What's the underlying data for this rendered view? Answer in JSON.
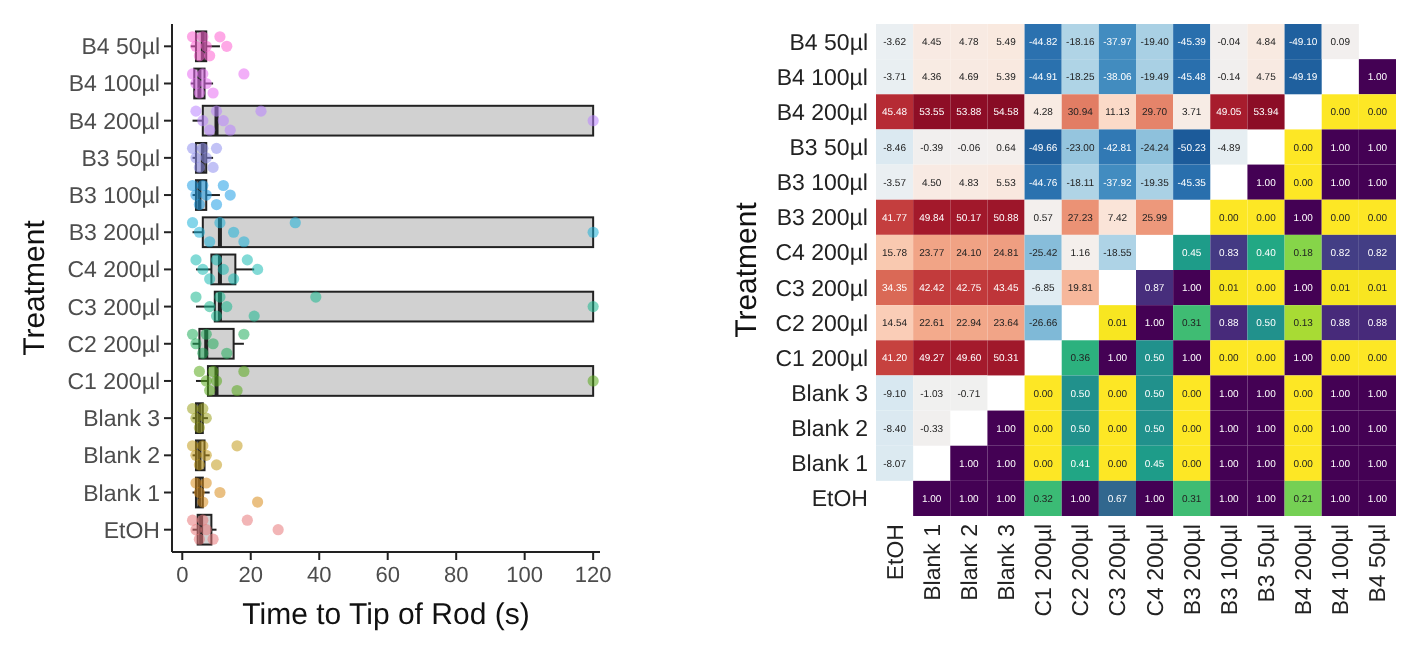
{
  "chart_data": [
    {
      "type": "box",
      "orientation": "horizontal",
      "xlabel": "Time to Tip of Rod (s)",
      "ylabel": "Treatment",
      "marker": "circle",
      "categories": [
        "B4 50µl",
        "B4 100µl",
        "B4 200µl",
        "B3 50µl",
        "B3 100µl",
        "B3 200µl",
        "C4 200µl",
        "C3 200µl",
        "C2 200µl",
        "C1 200µl",
        "Blank 3",
        "Blank 2",
        "Blank 1",
        "EtOH"
      ],
      "xlim": [
        -3,
        122
      ],
      "xticks": [
        0,
        20,
        40,
        60,
        80,
        100,
        120
      ],
      "series": [
        {
          "type": "box",
          "color": "#cccccc",
          "boxes": [
            {
              "low": 2.5,
              "q1": 4,
              "median": 6,
              "q3": 7,
              "high": 11
            },
            {
              "low": 2.5,
              "q1": 3.5,
              "median": 5,
              "q3": 6.5,
              "high": 9
            },
            {
              "low": 3,
              "q1": 6,
              "median": 10,
              "q3": 120,
              "high": 120
            },
            {
              "low": 3,
              "q1": 4,
              "median": 6,
              "q3": 7,
              "high": 9
            },
            {
              "low": 3,
              "q1": 4,
              "median": 5,
              "q3": 7,
              "high": 11
            },
            {
              "low": 3,
              "q1": 6,
              "median": 11,
              "q3": 120,
              "high": 120
            },
            {
              "low": 4,
              "q1": 8.5,
              "median": 11,
              "q3": 15.5,
              "high": 21
            },
            {
              "low": 4,
              "q1": 9.5,
              "median": 11,
              "q3": 120,
              "high": 120
            },
            {
              "low": 3,
              "q1": 5,
              "median": 7,
              "q3": 15,
              "high": 18
            },
            {
              "low": 4,
              "q1": 7.5,
              "median": 10,
              "q3": 120,
              "high": 120
            },
            {
              "low": 3,
              "q1": 4,
              "median": 5,
              "q3": 6,
              "high": 7.5
            },
            {
              "low": 3,
              "q1": 4,
              "median": 5,
              "q3": 6.5,
              "high": 8
            },
            {
              "low": 3,
              "q1": 4,
              "median": 5,
              "q3": 6,
              "high": 8
            },
            {
              "low": 3,
              "q1": 4.5,
              "median": 5.5,
              "q3": 8.5,
              "high": 10
            }
          ]
        },
        {
          "type": "scatter",
          "color": "#fd61d1",
          "x": [
            "B4 50µl",
            "B4 50µl",
            "B4 50µl",
            "B4 50µl",
            "B4 50µl",
            "B4 50µl",
            "B4 50µl",
            "B4 50µl"
          ],
          "values": [
            3,
            4,
            5,
            6,
            7,
            8,
            11,
            13
          ]
        },
        {
          "type": "scatter",
          "color": "#e76bf3",
          "x": [
            "B4 100µl",
            "B4 100µl",
            "B4 100µl",
            "B4 100µl",
            "B4 100µl",
            "B4 100µl",
            "B4 100µl"
          ],
          "values": [
            3,
            4,
            5,
            6,
            7,
            9,
            18
          ]
        },
        {
          "type": "scatter",
          "color": "#b983ff",
          "x": [
            "B4 200µl",
            "B4 200µl",
            "B4 200µl",
            "B4 200µl",
            "B4 200µl",
            "B4 200µl",
            "B4 200µl",
            "B4 200µl"
          ],
          "values": [
            4,
            6,
            8,
            10,
            12,
            14,
            23,
            120
          ]
        },
        {
          "type": "scatter",
          "color": "#8f8fef",
          "x": [
            "B3 50µl",
            "B3 50µl",
            "B3 50µl",
            "B3 50µl",
            "B3 50µl",
            "B3 50µl",
            "B3 50µl"
          ],
          "values": [
            3,
            4,
            5,
            6,
            7,
            9,
            10
          ]
        },
        {
          "type": "scatter",
          "color": "#1f9fe6",
          "x": [
            "B3 100µl",
            "B3 100µl",
            "B3 100µl",
            "B3 100µl",
            "B3 100µl",
            "B3 100µl",
            "B3 100µl",
            "B3 100µl"
          ],
          "values": [
            3,
            4,
            5,
            6,
            7,
            10,
            12,
            14
          ]
        },
        {
          "type": "scatter",
          "color": "#1fb2d8",
          "x": [
            "B3 200µl",
            "B3 200µl",
            "B3 200µl",
            "B3 200µl",
            "B3 200µl",
            "B3 200µl",
            "B3 200µl",
            "B3 200µl"
          ],
          "values": [
            3,
            5,
            8,
            11,
            15,
            18,
            33,
            120
          ]
        },
        {
          "type": "scatter",
          "color": "#1cbcb4",
          "x": [
            "C4 200µl",
            "C4 200µl",
            "C4 200µl",
            "C4 200µl",
            "C4 200µl",
            "C4 200µl",
            "C4 200µl",
            "C4 200µl"
          ],
          "values": [
            4,
            6,
            8,
            10,
            12,
            15,
            19,
            22
          ]
        },
        {
          "type": "scatter",
          "color": "#1cb88f",
          "x": [
            "C3 200µl",
            "C3 200µl",
            "C3 200µl",
            "C3 200µl",
            "C3 200µl",
            "C3 200µl",
            "C3 200µl",
            "C3 200µl"
          ],
          "values": [
            4,
            8,
            10,
            11,
            13,
            21,
            39,
            120
          ]
        },
        {
          "type": "scatter",
          "color": "#22ad5c",
          "x": [
            "C2 200µl",
            "C2 200µl",
            "C2 200µl",
            "C2 200µl",
            "C2 200µl",
            "C2 200µl",
            "C2 200µl"
          ],
          "values": [
            3,
            4,
            6,
            7,
            9,
            13,
            18
          ]
        },
        {
          "type": "scatter",
          "color": "#5aaa1c",
          "x": [
            "C1 200µl",
            "C1 200µl",
            "C1 200µl",
            "C1 200µl",
            "C1 200µl",
            "C1 200µl",
            "C1 200µl",
            "C1 200µl"
          ],
          "values": [
            5,
            7,
            8,
            9,
            10,
            16,
            18,
            120
          ]
        },
        {
          "type": "scatter",
          "color": "#9aa11c",
          "x": [
            "Blank 3",
            "Blank 3",
            "Blank 3",
            "Blank 3",
            "Blank 3"
          ],
          "values": [
            3,
            4,
            5,
            6,
            7
          ]
        },
        {
          "type": "scatter",
          "color": "#c39a1c",
          "x": [
            "Blank 2",
            "Blank 2",
            "Blank 2",
            "Blank 2",
            "Blank 2",
            "Blank 2",
            "Blank 2"
          ],
          "values": [
            3,
            4,
            5,
            6,
            7,
            10,
            16
          ]
        },
        {
          "type": "scatter",
          "color": "#d88c1c",
          "x": [
            "Blank 1",
            "Blank 1",
            "Blank 1",
            "Blank 1",
            "Blank 1",
            "Blank 1"
          ],
          "values": [
            4,
            5,
            6,
            7,
            11,
            22
          ]
        },
        {
          "type": "scatter",
          "color": "#e8787a",
          "x": [
            "EtOH",
            "EtOH",
            "EtOH",
            "EtOH",
            "EtOH",
            "EtOH",
            "EtOH",
            "EtOH"
          ],
          "values": [
            3,
            4,
            5,
            6,
            7,
            9,
            19,
            28
          ]
        }
      ]
    },
    {
      "type": "heatmap",
      "ylabel": "Treatment",
      "categories": [
        "EtOH",
        "Blank 1",
        "Blank 2",
        "Blank 3",
        "C1 200µl",
        "C2 200µl",
        "C3 200µl",
        "C4 200µl",
        "B3 200µl",
        "B3 100µl",
        "B3 50µl",
        "B4 200µl",
        "B4 100µl",
        "B4 50µl"
      ],
      "y_categories": [
        "B4 50µl",
        "B4 100µl",
        "B4 200µl",
        "B3 50µl",
        "B3 100µl",
        "B3 200µl",
        "C4 200µl",
        "C3 200µl",
        "C2 200µl",
        "C1 200µl",
        "Blank 3",
        "Blank 2",
        "Blank 1",
        "EtOH"
      ],
      "cells": [
        [
          -3.62,
          4.45,
          4.78,
          5.49,
          -44.82,
          -18.16,
          -37.97,
          -19.4,
          -45.39,
          -0.04,
          4.84,
          -49.1,
          0.09,
          null
        ],
        [
          -3.71,
          4.36,
          4.69,
          5.39,
          -44.91,
          -18.25,
          -38.06,
          -19.49,
          -45.48,
          -0.14,
          4.75,
          -49.19,
          null,
          1
        ],
        [
          45.48,
          53.55,
          53.88,
          54.58,
          4.28,
          30.94,
          11.13,
          29.7,
          3.71,
          49.05,
          53.94,
          null,
          0,
          0
        ],
        [
          -8.46,
          -0.39,
          -0.06,
          0.64,
          -49.66,
          -23.0,
          -42.81,
          -24.24,
          -50.23,
          -4.89,
          null,
          0,
          1,
          1
        ],
        [
          -3.57,
          4.5,
          4.83,
          5.53,
          -44.76,
          -18.11,
          -37.92,
          -19.35,
          -45.35,
          null,
          1,
          0,
          1,
          1
        ],
        [
          41.77,
          49.84,
          50.17,
          50.88,
          0.57,
          27.23,
          7.42,
          25.99,
          null,
          0,
          0,
          1,
          0,
          0
        ],
        [
          15.78,
          23.77,
          24.1,
          24.81,
          -25.42,
          1.16,
          -18.55,
          null,
          0.45,
          0.83,
          0.4,
          0.18,
          0.82,
          0.82
        ],
        [
          34.35,
          42.42,
          42.75,
          43.45,
          -6.85,
          19.81,
          null,
          0.87,
          1,
          0.01,
          0,
          1,
          0.01,
          0.01
        ],
        [
          14.54,
          22.61,
          22.94,
          23.64,
          -26.66,
          null,
          0.01,
          1,
          0.31,
          0.88,
          0.5,
          0.13,
          0.88,
          0.88
        ],
        [
          41.2,
          49.27,
          49.6,
          50.31,
          null,
          0.36,
          1,
          0.5,
          1,
          0,
          0,
          1,
          0,
          0
        ],
        [
          -9.1,
          -1.03,
          -0.71,
          null,
          0,
          0.5,
          0,
          0.5,
          0,
          1,
          1,
          0,
          1,
          1
        ],
        [
          -8.4,
          -0.33,
          null,
          1,
          0,
          0.5,
          0,
          0.5,
          0,
          1,
          1,
          0,
          1,
          1
        ],
        [
          -8.07,
          null,
          1,
          1,
          0,
          0.41,
          0,
          0.45,
          0,
          1,
          1,
          0,
          1,
          1
        ],
        [
          null,
          1,
          1,
          1,
          0.32,
          1,
          0.67,
          1,
          0.31,
          1,
          1,
          0.21,
          1,
          1
        ]
      ],
      "cell_labels": [
        [
          "-3.62",
          "4.45",
          "4.78",
          "5.49",
          "-44.82",
          "-18.16",
          "-37.97",
          "-19.40",
          "-45.39",
          "-0.04",
          "4.84",
          "-49.10",
          "0.09",
          null
        ],
        [
          "-3.71",
          "4.36",
          "4.69",
          "5.39",
          "-44.91",
          "-18.25",
          "-38.06",
          "-19.49",
          "-45.48",
          "-0.14",
          "4.75",
          "-49.19",
          null,
          "1.00"
        ],
        [
          "45.48",
          "53.55",
          "53.88",
          "54.58",
          "4.28",
          "30.94",
          "11.13",
          "29.70",
          "3.71",
          "49.05",
          "53.94",
          null,
          "0.00",
          "0.00"
        ],
        [
          "-8.46",
          "-0.39",
          "-0.06",
          "0.64",
          "-49.66",
          "-23.00",
          "-42.81",
          "-24.24",
          "-50.23",
          "-4.89",
          null,
          "0.00",
          "1.00",
          "1.00"
        ],
        [
          "-3.57",
          "4.50",
          "4.83",
          "5.53",
          "-44.76",
          "-18.11",
          "-37.92",
          "-19.35",
          "-45.35",
          null,
          "1.00",
          "0.00",
          "1.00",
          "1.00"
        ],
        [
          "41.77",
          "49.84",
          "50.17",
          "50.88",
          "0.57",
          "27.23",
          "7.42",
          "25.99",
          null,
          "0.00",
          "0.00",
          "1.00",
          "0.00",
          "0.00"
        ],
        [
          "15.78",
          "23.77",
          "24.10",
          "24.81",
          "-25.42",
          "1.16",
          "-18.55",
          null,
          "0.45",
          "0.83",
          "0.40",
          "0.18",
          "0.82",
          "0.82"
        ],
        [
          "34.35",
          "42.42",
          "42.75",
          "43.45",
          "-6.85",
          "19.81",
          null,
          "0.87",
          "1.00",
          "0.01",
          "0.00",
          "1.00",
          "0.01",
          "0.01"
        ],
        [
          "14.54",
          "22.61",
          "22.94",
          "23.64",
          "-26.66",
          null,
          "0.01",
          "1.00",
          "0.31",
          "0.88",
          "0.50",
          "0.13",
          "0.88",
          "0.88"
        ],
        [
          "41.20",
          "49.27",
          "49.60",
          "50.31",
          null,
          "0.36",
          "1.00",
          "0.50",
          "1.00",
          "0.00",
          "0.00",
          "1.00",
          "0.00",
          "0.00"
        ],
        [
          "-9.10",
          "-1.03",
          "-0.71",
          null,
          "0.00",
          "0.50",
          "0.00",
          "0.50",
          "0.00",
          "1.00",
          "1.00",
          "0.00",
          "1.00",
          "1.00"
        ],
        [
          "-8.40",
          "-0.33",
          null,
          "1.00",
          "0.00",
          "0.50",
          "0.00",
          "0.50",
          "0.00",
          "1.00",
          "1.00",
          "0.00",
          "1.00",
          "1.00"
        ],
        [
          "-8.07",
          null,
          "1.00",
          "1.00",
          "0.00",
          "0.41",
          "0.00",
          "0.45",
          "0.00",
          "1.00",
          "1.00",
          "0.00",
          "1.00",
          "1.00"
        ],
        [
          null,
          "1.00",
          "1.00",
          "1.00",
          "0.32",
          "1.00",
          "0.67",
          "1.00",
          "0.31",
          "1.00",
          "1.00",
          "0.21",
          "1.00",
          "1.00"
        ]
      ]
    }
  ]
}
